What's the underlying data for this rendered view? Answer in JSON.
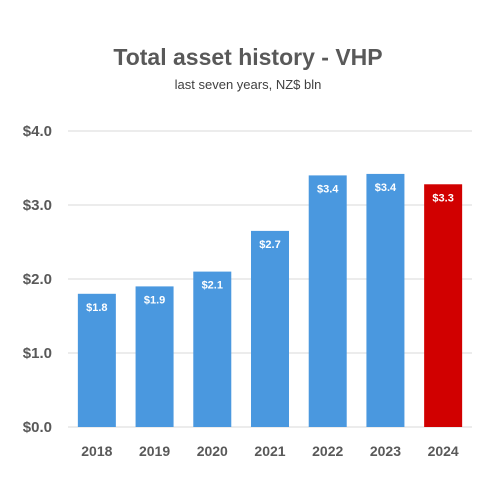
{
  "chart_data": {
    "type": "bar",
    "title": "Total asset history - VHP",
    "subtitle": "last seven years, NZ$ bln",
    "categories": [
      "2018",
      "2019",
      "2020",
      "2021",
      "2022",
      "2023",
      "2024"
    ],
    "values": [
      1.8,
      1.9,
      2.1,
      2.65,
      3.4,
      3.42,
      3.28
    ],
    "data_labels": [
      "$1.8",
      "$1.9",
      "$2.1",
      "$2.7",
      "$3.4",
      "$3.4",
      "$3.3"
    ],
    "ylim": [
      0,
      4.0
    ],
    "yticks": [
      0,
      1.0,
      2.0,
      3.0,
      4.0
    ],
    "ytick_labels": [
      "$0.0",
      "$1.0",
      "$2.0",
      "$3.0",
      "$4.0"
    ],
    "grid": true,
    "legend": "none",
    "colors": {
      "bar": "#4a98df",
      "highlight": "#d10000",
      "grid": "#d9d9d9"
    },
    "highlight_index": 6
  }
}
